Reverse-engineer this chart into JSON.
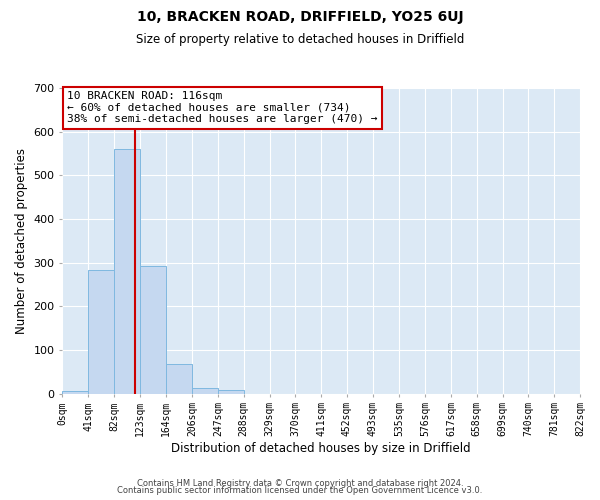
{
  "title": "10, BRACKEN ROAD, DRIFFIELD, YO25 6UJ",
  "subtitle": "Size of property relative to detached houses in Driffield",
  "xlabel": "Distribution of detached houses by size in Driffield",
  "ylabel": "Number of detached properties",
  "bin_edges": [
    0,
    41,
    82,
    123,
    164,
    206,
    247,
    288,
    329,
    370,
    411,
    452,
    493,
    535,
    576,
    617,
    658,
    699,
    740,
    781,
    822
  ],
  "bar_heights": [
    7,
    283,
    560,
    293,
    68,
    13,
    8,
    0,
    0,
    0,
    0,
    0,
    0,
    0,
    0,
    0,
    0,
    0,
    0,
    0
  ],
  "bar_color": "#c5d8f0",
  "bar_edgecolor": "#7fb8e0",
  "property_size": 116,
  "vline_color": "#cc0000",
  "ylim": [
    0,
    700
  ],
  "yticks": [
    0,
    100,
    200,
    300,
    400,
    500,
    600,
    700
  ],
  "annotation_line1": "10 BRACKEN ROAD: 116sqm",
  "annotation_line2": "← 60% of detached houses are smaller (734)",
  "annotation_line3": "38% of semi-detached houses are larger (470) →",
  "annotation_box_color": "#cc0000",
  "footer1": "Contains HM Land Registry data © Crown copyright and database right 2024.",
  "footer2": "Contains public sector information licensed under the Open Government Licence v3.0.",
  "bg_color": "#dce9f5",
  "fig_bg_color": "#ffffff",
  "grid_color": "#ffffff",
  "tick_labels": [
    "0sqm",
    "41sqm",
    "82sqm",
    "123sqm",
    "164sqm",
    "206sqm",
    "247sqm",
    "288sqm",
    "329sqm",
    "370sqm",
    "411sqm",
    "452sqm",
    "493sqm",
    "535sqm",
    "576sqm",
    "617sqm",
    "658sqm",
    "699sqm",
    "740sqm",
    "781sqm",
    "822sqm"
  ],
  "title_fontsize": 10,
  "subtitle_fontsize": 8.5,
  "xlabel_fontsize": 8.5,
  "ylabel_fontsize": 8.5,
  "tick_fontsize": 7,
  "annotation_fontsize": 8,
  "footer_fontsize": 6
}
